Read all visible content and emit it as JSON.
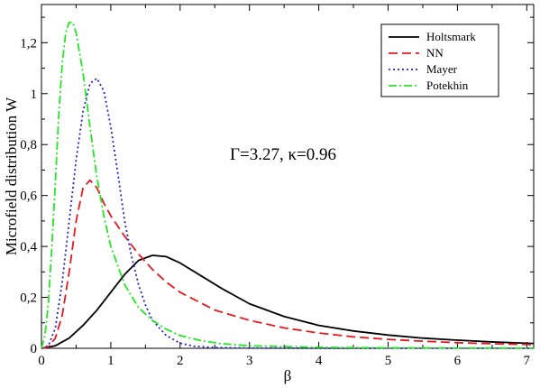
{
  "chart_data": {
    "type": "line",
    "xlabel": "β",
    "ylabel": "Microfield distribution W",
    "xlim": [
      0,
      7.1
    ],
    "ylim": [
      0,
      1.35
    ],
    "xticks": [
      0,
      1,
      2,
      3,
      4,
      5,
      6,
      7
    ],
    "xtick_labels": [
      "0",
      "1",
      "2",
      "3",
      "4",
      "5",
      "6",
      "7"
    ],
    "yticks": [
      0,
      0.2,
      0.4,
      0.6,
      0.8,
      1.0,
      1.2
    ],
    "ytick_labels": [
      "0",
      "0,2",
      "0,4",
      "0,6",
      "0,8",
      "1",
      "1,2"
    ],
    "grid": false,
    "legend_position": "top-right",
    "annotation": "Γ=3.27, κ=0.96",
    "series": [
      {
        "name": "Holtsmark",
        "color": "#000000",
        "dash": "solid",
        "x": [
          0,
          0.2,
          0.4,
          0.6,
          0.8,
          1.0,
          1.2,
          1.4,
          1.6,
          1.8,
          2.0,
          2.3,
          2.6,
          3.0,
          3.5,
          4.0,
          4.5,
          5.0,
          5.5,
          6.0,
          6.5,
          7.0,
          7.1
        ],
        "y": [
          0,
          0.01,
          0.04,
          0.09,
          0.15,
          0.22,
          0.29,
          0.345,
          0.365,
          0.36,
          0.335,
          0.285,
          0.235,
          0.175,
          0.125,
          0.09,
          0.068,
          0.052,
          0.04,
          0.032,
          0.025,
          0.02,
          0.019
        ]
      },
      {
        "name": "NN",
        "color": "#e8191e",
        "dash": "dashed",
        "x": [
          0,
          0.1,
          0.2,
          0.3,
          0.4,
          0.5,
          0.6,
          0.7,
          0.8,
          0.9,
          1.0,
          1.2,
          1.4,
          1.6,
          1.8,
          2.0,
          2.5,
          3.0,
          3.5,
          4.0,
          4.5,
          5.0,
          5.5,
          6.0,
          6.5,
          7.0,
          7.1
        ],
        "y": [
          0,
          0.005,
          0.04,
          0.13,
          0.3,
          0.5,
          0.63,
          0.66,
          0.63,
          0.57,
          0.52,
          0.44,
          0.37,
          0.31,
          0.26,
          0.22,
          0.15,
          0.11,
          0.08,
          0.06,
          0.045,
          0.035,
          0.028,
          0.022,
          0.018,
          0.015,
          0.014
        ]
      },
      {
        "name": "Mayer",
        "color": "#2323c8",
        "dash": "dotted",
        "x": [
          0,
          0.1,
          0.2,
          0.3,
          0.4,
          0.5,
          0.6,
          0.7,
          0.8,
          0.9,
          1.0,
          1.1,
          1.2,
          1.3,
          1.4,
          1.5,
          1.6,
          1.8,
          2.0,
          2.2,
          2.5,
          3.0,
          4.0,
          5.0,
          6.0,
          7.0,
          7.1
        ],
        "y": [
          0,
          0.01,
          0.08,
          0.26,
          0.5,
          0.74,
          0.93,
          1.04,
          1.06,
          1.01,
          0.87,
          0.69,
          0.5,
          0.36,
          0.25,
          0.17,
          0.11,
          0.05,
          0.02,
          0.008,
          0.003,
          0.001,
          0,
          0,
          0,
          0,
          0
        ]
      },
      {
        "name": "Potekhin",
        "color": "#22e822",
        "dash": "dashdot",
        "x": [
          0,
          0.05,
          0.1,
          0.15,
          0.2,
          0.25,
          0.3,
          0.35,
          0.4,
          0.45,
          0.5,
          0.6,
          0.7,
          0.8,
          0.9,
          1.0,
          1.2,
          1.4,
          1.6,
          1.8,
          2.0,
          2.3,
          2.6,
          3.0,
          4.0,
          5.0,
          6.0,
          7.0,
          7.1
        ],
        "y": [
          0,
          0.05,
          0.18,
          0.4,
          0.65,
          0.92,
          1.12,
          1.24,
          1.28,
          1.28,
          1.24,
          1.08,
          0.87,
          0.67,
          0.52,
          0.4,
          0.25,
          0.16,
          0.11,
          0.075,
          0.05,
          0.03,
          0.018,
          0.01,
          0.004,
          0.002,
          0.001,
          0.0005,
          0
        ]
      }
    ]
  }
}
